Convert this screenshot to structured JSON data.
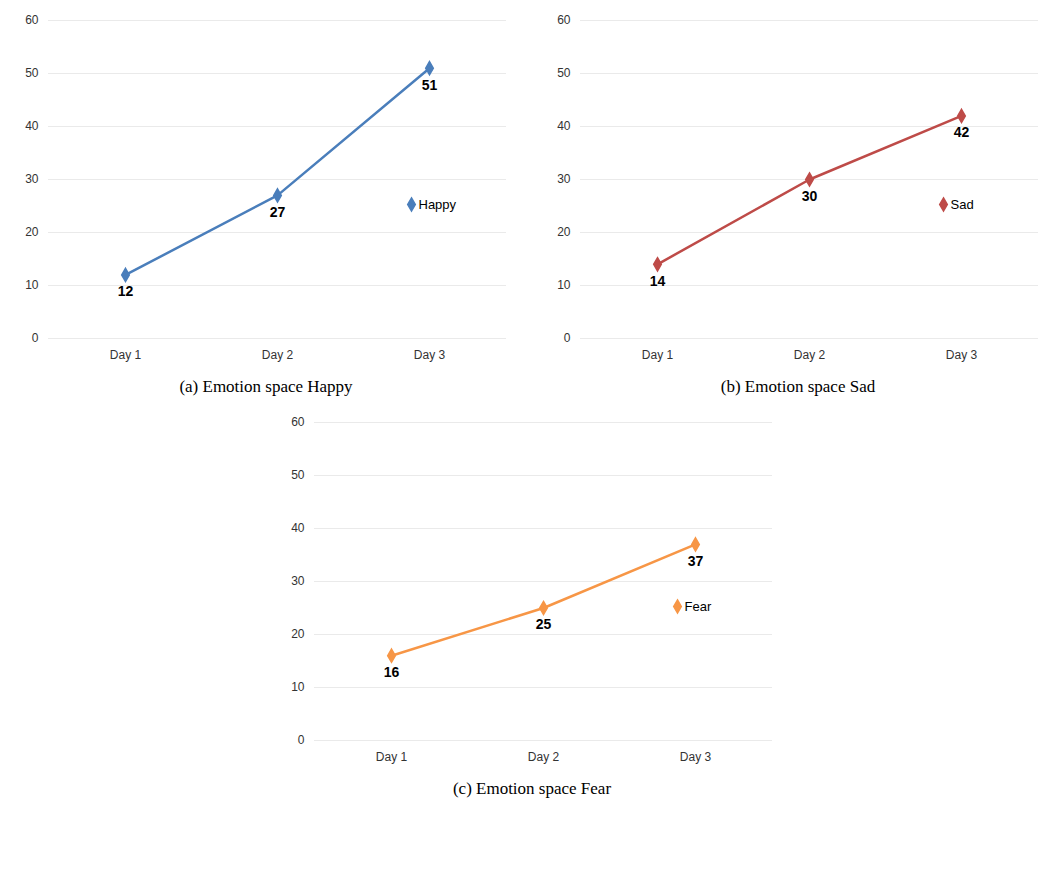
{
  "chart_data": [
    {
      "type": "line",
      "title": "(a) Emotion space Happy",
      "categories": [
        "Day 1",
        "Day 2",
        "Day 3"
      ],
      "series": [
        {
          "name": "Happy",
          "color": "#4a7ebb",
          "values": [
            12,
            27,
            51
          ],
          "marker": "diamond"
        }
      ],
      "ylim": [
        0,
        60
      ],
      "yticks": [
        0,
        10,
        20,
        30,
        40,
        50,
        60
      ],
      "grid": true,
      "legend": "right",
      "data_labels": true
    },
    {
      "type": "line",
      "title": "(b) Emotion space Sad",
      "categories": [
        "Day 1",
        "Day 2",
        "Day 3"
      ],
      "series": [
        {
          "name": "Sad",
          "color": "#be4b48",
          "values": [
            14,
            30,
            42
          ],
          "marker": "diamond"
        }
      ],
      "ylim": [
        0,
        60
      ],
      "yticks": [
        0,
        10,
        20,
        30,
        40,
        50,
        60
      ],
      "grid": true,
      "legend": "right",
      "data_labels": true
    },
    {
      "type": "line",
      "title": "(c) Emotion space Fear",
      "categories": [
        "Day 1",
        "Day 2",
        "Day 3"
      ],
      "series": [
        {
          "name": "Fear",
          "color": "#f79646",
          "values": [
            16,
            25,
            37
          ],
          "marker": "diamond"
        }
      ],
      "ylim": [
        0,
        60
      ],
      "yticks": [
        0,
        10,
        20,
        30,
        40,
        50,
        60
      ],
      "grid": true,
      "legend": "right",
      "data_labels": true
    }
  ]
}
